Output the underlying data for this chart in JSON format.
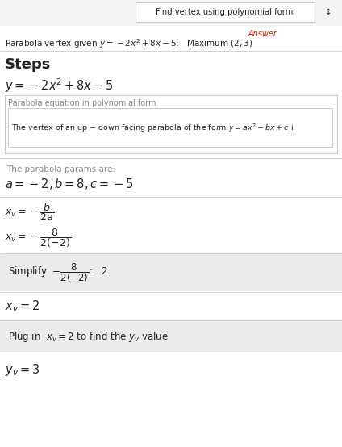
{
  "fig_w": 4.24,
  "fig_h": 5.54,
  "dpi": 100,
  "bg_color": "#ffffff",
  "light_gray_bg": "#f0f0f0",
  "outer_bg": "#f5f5f5",
  "white": "#ffffff",
  "light_gray": "#ebebeb",
  "sep_color": "#cccccc",
  "text_color": "#222222",
  "gray_text": "#888888",
  "red_color": "#cc2200",
  "box_border": "#cccccc",
  "title_bar_text": "Find vertex using polynomial form",
  "answer_label": "Answer",
  "steps_label": "Steps"
}
